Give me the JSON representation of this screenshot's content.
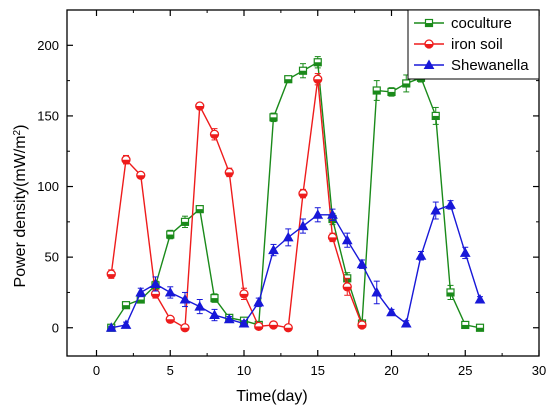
{
  "chart_data": {
    "type": "line",
    "title": "",
    "xlabel": "Time(day)",
    "ylabel_main": "Power density(mW/m",
    "ylabel_sup": "2",
    "ylabel_close": ")",
    "xlim": [
      -2,
      30
    ],
    "ylim": [
      -20,
      225
    ],
    "xticks": [
      0,
      5,
      10,
      15,
      20,
      25,
      30
    ],
    "yticks": [
      0,
      50,
      100,
      150,
      200
    ],
    "grid": false,
    "legend_position": "top-right",
    "series": [
      {
        "name": "coculture",
        "color": "#1a8a1a",
        "marker": "square",
        "x": [
          1,
          2,
          3,
          4,
          5,
          6,
          7,
          8,
          9,
          10,
          11,
          12,
          13,
          14,
          15,
          16,
          17,
          18,
          19,
          20,
          21,
          22,
          23,
          24,
          25,
          26
        ],
        "y": [
          0,
          16,
          20,
          30,
          66,
          75,
          84,
          21,
          7,
          5,
          2,
          149,
          176,
          182,
          188,
          77,
          35,
          3,
          168,
          167,
          173,
          177,
          150,
          25,
          2,
          0
        ],
        "err": [
          2,
          2,
          2,
          3,
          3,
          4,
          2,
          3,
          2,
          2,
          2,
          3,
          2,
          5,
          4,
          4,
          4,
          2,
          7,
          3,
          6,
          3,
          6,
          5,
          2,
          1
        ]
      },
      {
        "name": "iron soil",
        "color": "#ee1c1c",
        "marker": "half-circle",
        "x": [
          1,
          2,
          3,
          4,
          5,
          6,
          7,
          8,
          9,
          10,
          11,
          12,
          13,
          14,
          15,
          16,
          17,
          18
        ],
        "y": [
          38,
          119,
          108,
          24,
          6,
          0,
          157,
          137,
          110,
          24,
          1,
          2,
          0,
          95,
          176,
          64,
          29,
          2
        ],
        "err": [
          3,
          3,
          2,
          3,
          2,
          2,
          2,
          4,
          3,
          4,
          2,
          1,
          1,
          3,
          4,
          3,
          6,
          1
        ]
      },
      {
        "name": "Shewanella",
        "color": "#1818d8",
        "marker": "triangle",
        "x": [
          1,
          2,
          3,
          4,
          5,
          6,
          7,
          8,
          9,
          10,
          11,
          12,
          13,
          14,
          15,
          16,
          17,
          18,
          19,
          20,
          21,
          22,
          23,
          24,
          25,
          26
        ],
        "y": [
          0,
          2,
          25,
          31,
          25,
          20,
          15,
          9,
          6,
          3,
          18,
          55,
          64,
          72,
          80,
          80,
          62,
          45,
          25,
          11,
          3,
          51,
          83,
          87,
          53,
          20
        ],
        "err": [
          1,
          2,
          3,
          5,
          4,
          5,
          5,
          4,
          2,
          2,
          3,
          4,
          6,
          5,
          5,
          4,
          5,
          3,
          8,
          2,
          2,
          3,
          6,
          3,
          4,
          2
        ]
      }
    ]
  }
}
